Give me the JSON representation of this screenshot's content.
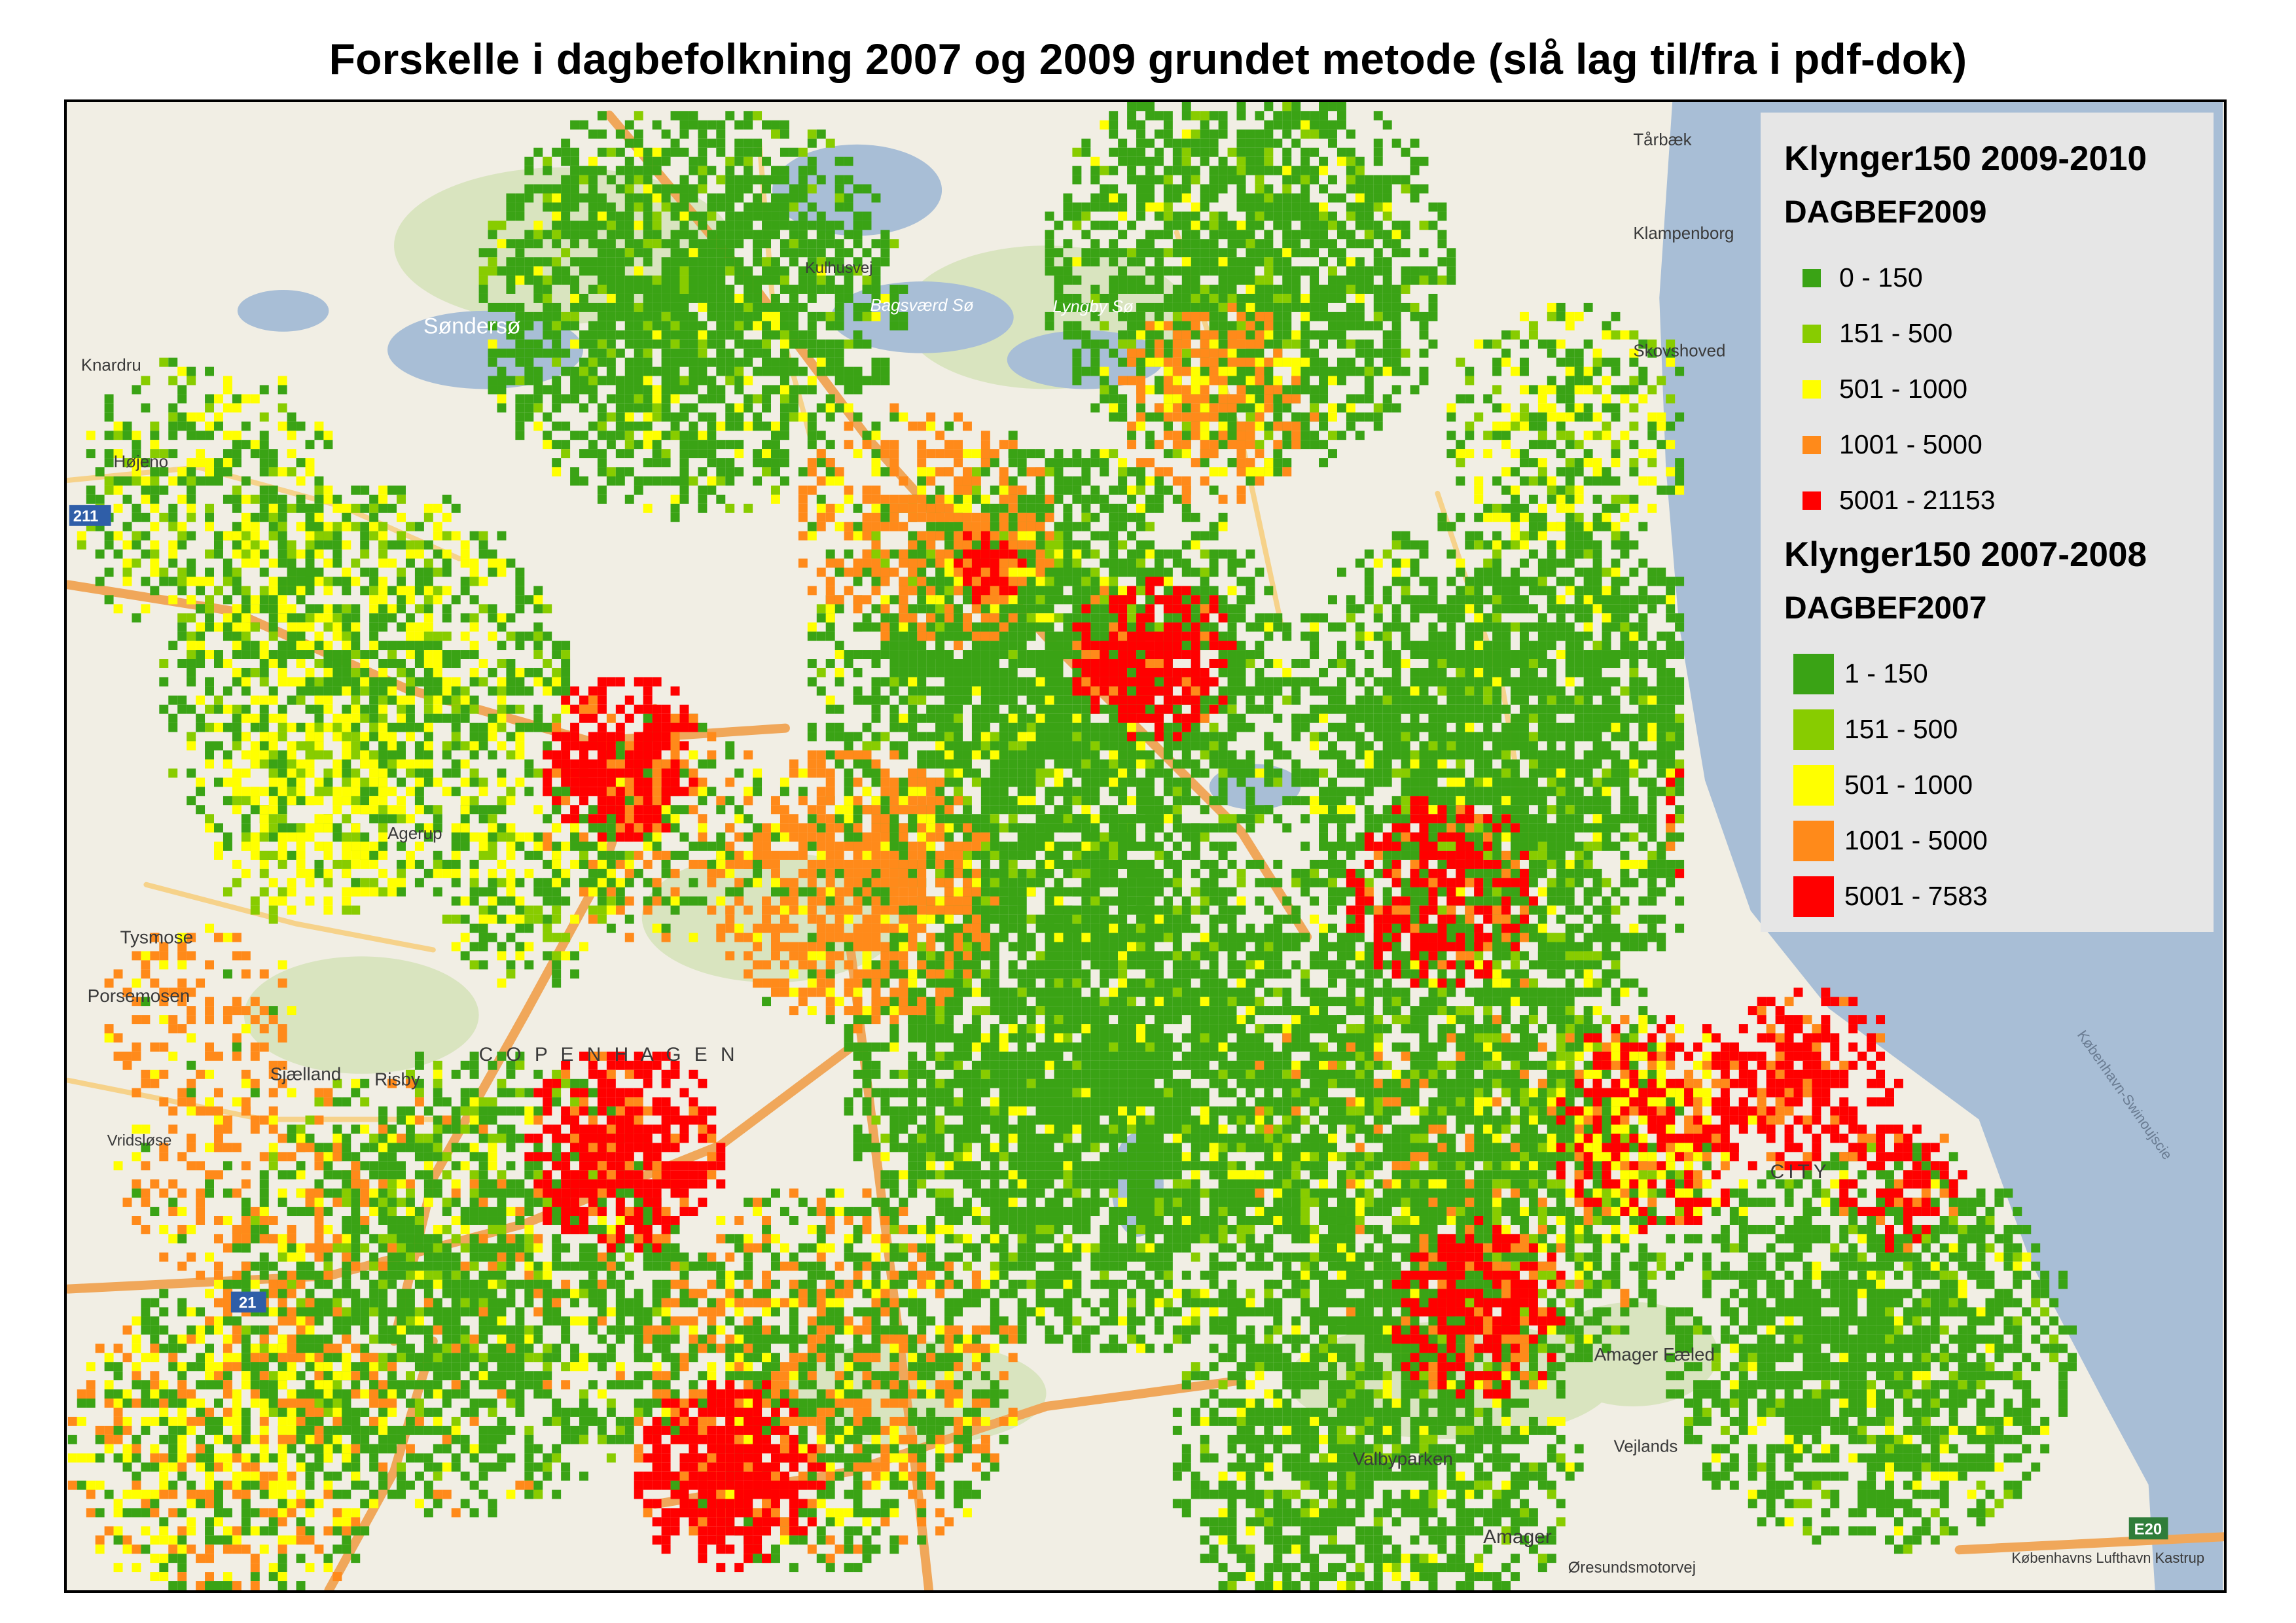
{
  "title": "Forskelle i dagbefolkning 2007 og 2009 grundet metode (slå lag til/fra i pdf-dok)",
  "colors": {
    "dark_green": "#3aa315",
    "light_green": "#88cc00",
    "yellow": "#ffff00",
    "orange": "#ff8a1a",
    "red": "#ff0000",
    "water": "#a8bed6",
    "land": "#f1eee4",
    "park": "#d9e4bf",
    "road": "#f0a75a"
  },
  "legend": {
    "group1": {
      "title": "Klynger150 2009-2010",
      "field": "DAGBEF2009",
      "items": [
        {
          "label": "0 - 150",
          "color": "#3aa315"
        },
        {
          "label": "151 - 500",
          "color": "#88cc00"
        },
        {
          "label": "501 - 1000",
          "color": "#ffff00"
        },
        {
          "label": "1001 - 5000",
          "color": "#ff8a1a"
        },
        {
          "label": "5001 - 21153",
          "color": "#ff0000"
        }
      ]
    },
    "group2": {
      "title": "Klynger150 2007-2008",
      "field": "DAGBEF2007",
      "items": [
        {
          "label": "1 - 150",
          "color": "#3aa315"
        },
        {
          "label": "151 - 500",
          "color": "#88cc00"
        },
        {
          "label": "501 - 1000",
          "color": "#ffff00"
        },
        {
          "label": "1001 - 5000",
          "color": "#ff8a1a"
        },
        {
          "label": "5001 - 7583",
          "color": "#ff0000"
        }
      ]
    }
  },
  "place_labels": {
    "sondersoe": "Søndersø",
    "bagsvaerd": "Bagsværd Sø",
    "lyngby": "Lyngby Sø",
    "kulhusvej": "Kulhusvej",
    "tarbaek": "Tårbæk",
    "klampenborg": "Klampenborg",
    "skovshoved": "Skovshoved",
    "knardrup": "Knardru",
    "hojeno": "Højeno",
    "tysmose": "Tysmose",
    "porsemosen": "Porsemosen",
    "sjaelland": "Sjælland",
    "risby": "Risby",
    "agerup": "Agerup",
    "vridsloese": "Vridsløse",
    "amager_faelled": "Amager Fæled",
    "valbyparken": "Valbyparken",
    "vejlands": "Vejlands",
    "amager": "Amager",
    "oresundsmotorvej": "Øresundsmotorvej",
    "kastrup": "Københavns Lufthavn Kastrup",
    "city": "CITY",
    "copenhagen": "C O P E N H A G E N",
    "kobenhavn_swinoujscie": "København-Swinoujscie",
    "e20": "E20",
    "road_21": "21",
    "road_211": "211"
  }
}
